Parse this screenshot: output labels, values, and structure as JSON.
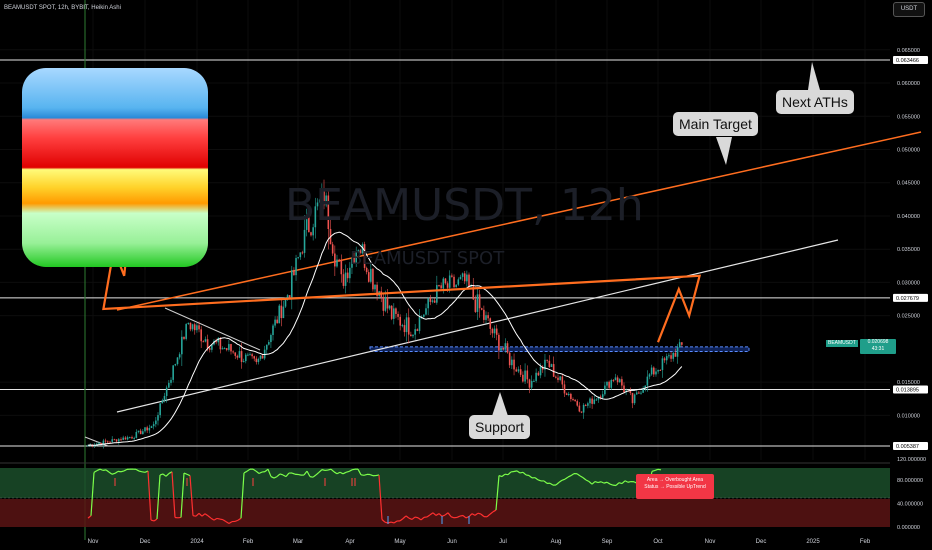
{
  "header": {
    "title": "BEAMUSDT SPOT, 12h, BYBIT, Heikin Ashi",
    "currency_button": "USDT",
    "watermark_symbol": "BEAMUSDT, 12h",
    "watermark_subtitle": "BEAMUSDT SPOT"
  },
  "annotations": {
    "next_aths": "Next ATHs",
    "main_target": "Main Target",
    "support": "Support",
    "indicator_note_line1": "Area → Overbought Area",
    "indicator_note_line2": "Status → Possible UpTrend"
  },
  "current_price": {
    "symbol": "BEAMUSDT",
    "value": "0.020698",
    "countdown": "43:31"
  },
  "colors": {
    "candle_up": "#26a69a",
    "candle_down": "#ef5350",
    "target_line": "#ff6d1f",
    "channel_line": "#e6e6e6",
    "support_zone": "#2962ff",
    "overbought_zone": "#1b4d2a",
    "oversold_zone": "#5a1414"
  },
  "chart_data": [
    {
      "type": "line",
      "title": "BEAMUSDT SPOT, 12h, BYBIT, Heikin Ashi",
      "x_ticks": [
        "Nov",
        "Dec",
        "2024",
        "Feb",
        "Mar",
        "Apr",
        "May",
        "Jun",
        "Jul",
        "Aug",
        "Sep",
        "Oct",
        "Nov",
        "Dec",
        "2025",
        "Feb"
      ],
      "y_ticks": [
        "0.065000",
        "0.060000",
        "0.055000",
        "0.050000",
        "0.045000",
        "0.040000",
        "0.035000",
        "0.030000",
        "0.025000",
        "0.015000",
        "0.010000"
      ],
      "ylim": [
        0.004,
        0.067
      ],
      "horizontal_levels": [
        {
          "value": 0.063466,
          "label": "0.063466"
        },
        {
          "value": 0.027679,
          "label": "0.027679"
        },
        {
          "value": 0.013895,
          "label": "0.013895"
        },
        {
          "value": 0.005387,
          "label": "0.005387"
        }
      ],
      "price_path": [
        [
          "Nov",
          0.0055
        ],
        [
          "Nov",
          0.0068
        ],
        [
          "Dec",
          0.0085
        ],
        [
          "Dec",
          0.016
        ],
        [
          "Dec",
          0.024
        ],
        [
          "2024",
          0.021
        ],
        [
          "2024",
          0.0195
        ],
        [
          "Feb",
          0.0175
        ],
        [
          "Feb",
          0.023
        ],
        [
          "Feb",
          0.029
        ],
        [
          "Mar",
          0.038
        ],
        [
          "Mar",
          0.043
        ],
        [
          "Mar",
          0.03
        ],
        [
          "Apr",
          0.036
        ],
        [
          "Apr",
          0.03
        ],
        [
          "Apr",
          0.025
        ],
        [
          "May",
          0.023
        ],
        [
          "May",
          0.029
        ],
        [
          "Jun",
          0.03
        ],
        [
          "Jun",
          0.023
        ],
        [
          "Jul",
          0.018
        ],
        [
          "Jul",
          0.015
        ],
        [
          "Jul",
          0.018
        ],
        [
          "Aug",
          0.014
        ],
        [
          "Aug",
          0.011
        ],
        [
          "Aug",
          0.013
        ],
        [
          "Sep",
          0.016
        ],
        [
          "Sep",
          0.012
        ],
        [
          "Sep",
          0.016
        ],
        [
          "Oct",
          0.0207
        ]
      ],
      "projection_path": [
        [
          "Oct",
          0.021
        ],
        [
          "Oct",
          0.029
        ],
        [
          "Oct",
          0.025
        ],
        [
          "Oct",
          0.031
        ],
        [
          "Nov",
          0.026
        ],
        [
          "Nov",
          0.035
        ],
        [
          "Nov",
          0.031
        ],
        [
          "Nov",
          0.046
        ]
      ],
      "support_zone": [
        0.0196,
        0.0203
      ]
    },
    {
      "type": "line",
      "y_ticks": [
        "120.000000",
        "80.000000",
        "40.000000",
        "0.000000"
      ],
      "ylim": [
        0,
        120
      ],
      "zones": {
        "overbought": [
          60,
          100
        ],
        "oversold": [
          10,
          40
        ]
      }
    }
  ]
}
